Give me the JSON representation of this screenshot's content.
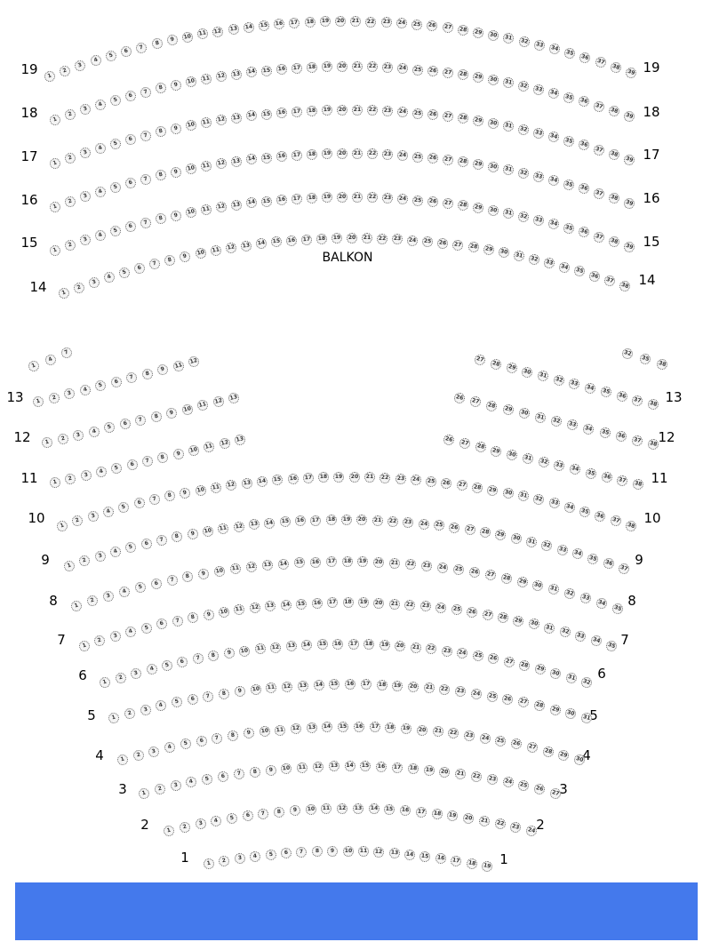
{
  "section_label": "BALKON",
  "colors": {
    "bottom_bar": "#4479EC",
    "seat_border": "#666666"
  },
  "rows": [
    {
      "label": "1",
      "segments": [
        {
          "from": 1,
          "to": 19
        }
      ]
    },
    {
      "label": "2",
      "segments": [
        {
          "from": 1,
          "to": 24
        }
      ]
    },
    {
      "label": "3",
      "segments": [
        {
          "from": 1,
          "to": 27
        }
      ]
    },
    {
      "label": "4",
      "segments": [
        {
          "from": 1,
          "to": 30
        }
      ]
    },
    {
      "label": "5",
      "segments": [
        {
          "from": 1,
          "to": 31
        }
      ]
    },
    {
      "label": "6",
      "segments": [
        {
          "from": 1,
          "to": 32
        }
      ]
    },
    {
      "label": "7",
      "segments": [
        {
          "from": 1,
          "to": 35
        }
      ]
    },
    {
      "label": "8",
      "segments": [
        {
          "from": 1,
          "to": 35
        }
      ]
    },
    {
      "label": "9",
      "segments": [
        {
          "from": 1,
          "to": 37
        }
      ]
    },
    {
      "label": "10",
      "segments": [
        {
          "from": 1,
          "to": 38
        }
      ]
    },
    {
      "label": "11",
      "segments": [
        {
          "from": 1,
          "to": 13
        },
        {
          "from": 26,
          "to": 38
        }
      ]
    },
    {
      "label": "12",
      "segments": [
        {
          "from": 1,
          "to": 13
        },
        {
          "from": 26,
          "to": 38
        }
      ]
    },
    {
      "label": "13",
      "segments": [
        {
          "seats": [
            1,
            2,
            3,
            4,
            5,
            6,
            7,
            8,
            9,
            11,
            12
          ]
        },
        {
          "from": 27,
          "to": 38
        }
      ]
    },
    {
      "label": "",
      "segments": [
        {
          "seats": [
            1,
            4,
            7
          ]
        },
        {
          "seats": [
            32,
            35,
            38
          ]
        }
      ]
    },
    {
      "label": "14",
      "segments": [
        {
          "from": 1,
          "to": 38
        }
      ]
    },
    {
      "label": "15",
      "segments": [
        {
          "from": 1,
          "to": 39
        }
      ]
    },
    {
      "label": "16",
      "segments": [
        {
          "from": 1,
          "to": 39
        }
      ]
    },
    {
      "label": "17",
      "segments": [
        {
          "from": 1,
          "to": 39
        }
      ]
    },
    {
      "label": "18",
      "segments": [
        {
          "from": 1,
          "to": 39
        }
      ]
    },
    {
      "label": "19",
      "segments": [
        {
          "from": 1,
          "to": 39
        }
      ]
    }
  ]
}
